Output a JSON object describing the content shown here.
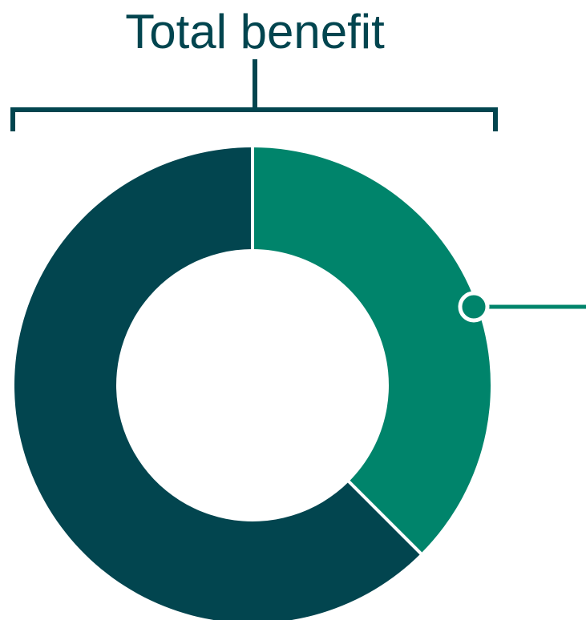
{
  "chart_data": {
    "type": "pie",
    "title": "Total benefit",
    "slices": [
      {
        "value": 37.5,
        "color": "#00846b"
      },
      {
        "value": 62.5,
        "color": "#02454f"
      }
    ],
    "donut": true,
    "annotation": {
      "slice_index": 0
    }
  },
  "colors": {
    "title": "#02454f",
    "bracket": "#02454f",
    "separator": "#ffffff",
    "callout": "#00846b"
  }
}
